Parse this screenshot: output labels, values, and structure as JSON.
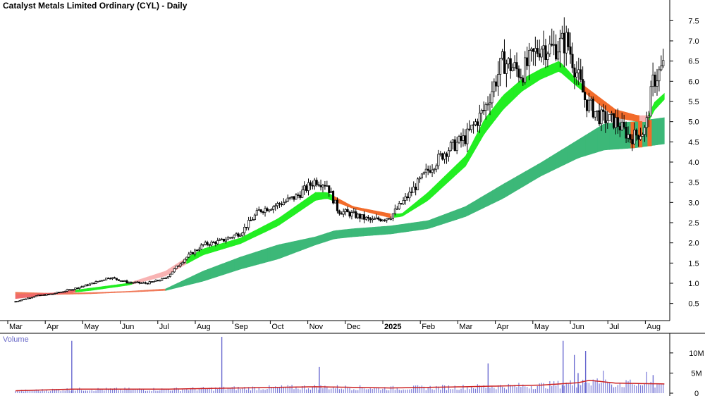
{
  "chart_data": [
    {
      "type": "candlestick",
      "title": "Catalyst Metals Limited Ordinary (CYL) - Daily",
      "y_ticks": [
        "0.5",
        "1.0",
        "1.5",
        "2.0",
        "2.5",
        "3.0",
        "3.5",
        "4.0",
        "4.5",
        "5.0",
        "5.5",
        "6.0",
        "6.5",
        "7.0",
        "7.5"
      ],
      "ylim": [
        0.25,
        7.75
      ],
      "x_labels": [
        {
          "label": "Mar",
          "bold": false
        },
        {
          "label": "Apr",
          "bold": false
        },
        {
          "label": "May",
          "bold": false
        },
        {
          "label": "Jun",
          "bold": false
        },
        {
          "label": "Jul",
          "bold": false
        },
        {
          "label": "Aug",
          "bold": false
        },
        {
          "label": "Sep",
          "bold": false
        },
        {
          "label": "Oct",
          "bold": false
        },
        {
          "label": "Nov",
          "bold": false
        },
        {
          "label": "Dec",
          "bold": false
        },
        {
          "label": "2025",
          "bold": true
        },
        {
          "label": "Feb",
          "bold": false
        },
        {
          "label": "Mar",
          "bold": false
        },
        {
          "label": "Apr",
          "bold": false
        },
        {
          "label": "May",
          "bold": false
        },
        {
          "label": "Jun",
          "bold": false
        },
        {
          "label": "Jul",
          "bold": false
        },
        {
          "label": "Aug",
          "bold": false
        }
      ],
      "price_path": [
        [
          0,
          0.55
        ],
        [
          0.5,
          0.68
        ],
        [
          1,
          0.74
        ],
        [
          1.5,
          0.85
        ],
        [
          2,
          0.98
        ],
        [
          2.5,
          1.15
        ],
        [
          3,
          1.02
        ],
        [
          3.5,
          1.0
        ],
        [
          4,
          1.12
        ],
        [
          4.5,
          1.6
        ],
        [
          5,
          1.95
        ],
        [
          5.5,
          2.05
        ],
        [
          6,
          2.25
        ],
        [
          6.5,
          2.8
        ],
        [
          7,
          2.95
        ],
        [
          7.5,
          3.15
        ],
        [
          8,
          3.55
        ],
        [
          8.3,
          3.45
        ],
        [
          8.6,
          2.8
        ],
        [
          9,
          2.7
        ],
        [
          9.5,
          2.55
        ],
        [
          10,
          2.65
        ],
        [
          10.5,
          3.2
        ],
        [
          11,
          3.8
        ],
        [
          11.5,
          4.3
        ],
        [
          12,
          4.6
        ],
        [
          12.5,
          5.3
        ],
        [
          13,
          6.5
        ],
        [
          13.5,
          6.2
        ],
        [
          14,
          6.9
        ],
        [
          14.3,
          6.8
        ],
        [
          14.7,
          7.0
        ],
        [
          15.2,
          5.5
        ],
        [
          15.6,
          5.1
        ],
        [
          16,
          5.0
        ],
        [
          16.4,
          4.6
        ],
        [
          16.8,
          4.8
        ],
        [
          17,
          6.0
        ],
        [
          17.3,
          6.4
        ]
      ],
      "short_ema_ribbon": [
        [
          0,
          0.62,
          0.72
        ],
        [
          1,
          0.72,
          0.76
        ],
        [
          2,
          0.82,
          0.88
        ],
        [
          3,
          0.95,
          1.0
        ],
        [
          4,
          1.18,
          1.3
        ],
        [
          4.5,
          1.45,
          1.6
        ],
        [
          5,
          1.7,
          1.85
        ],
        [
          6,
          1.98,
          2.12
        ],
        [
          7,
          2.42,
          2.6
        ],
        [
          8,
          3.05,
          3.25
        ],
        [
          8.3,
          3.1,
          3.25
        ],
        [
          9,
          2.85,
          2.9
        ],
        [
          10,
          2.62,
          2.72
        ],
        [
          10.3,
          2.65,
          2.72
        ],
        [
          11,
          3.05,
          3.25
        ],
        [
          12,
          3.9,
          4.15
        ],
        [
          12.5,
          4.7,
          5.05
        ],
        [
          13,
          5.3,
          5.65
        ],
        [
          13.5,
          5.75,
          6.05
        ],
        [
          14,
          6.05,
          6.3
        ],
        [
          14.5,
          6.25,
          6.5
        ],
        [
          15,
          5.85,
          6.0
        ],
        [
          16,
          5.1,
          5.3
        ],
        [
          16.6,
          5.0,
          5.15
        ],
        [
          16.9,
          5.0,
          5.15
        ],
        [
          17,
          5.25,
          5.45
        ],
        [
          17.3,
          5.55,
          5.7
        ]
      ],
      "long_ema_ribbon": [
        [
          0,
          0.72,
          0.78
        ],
        [
          1,
          0.72,
          0.75
        ],
        [
          2,
          0.74,
          0.77
        ],
        [
          3,
          0.78,
          0.8
        ],
        [
          4,
          0.82,
          0.86
        ],
        [
          5,
          1.05,
          1.3
        ],
        [
          6,
          1.35,
          1.65
        ],
        [
          7,
          1.6,
          1.95
        ],
        [
          8,
          1.95,
          2.15
        ],
        [
          8.5,
          2.1,
          2.3
        ],
        [
          9,
          2.15,
          2.35
        ],
        [
          10,
          2.22,
          2.42
        ],
        [
          11,
          2.35,
          2.55
        ],
        [
          12,
          2.65,
          2.9
        ],
        [
          13,
          3.1,
          3.45
        ],
        [
          14,
          3.65,
          3.98
        ],
        [
          15,
          4.1,
          4.55
        ],
        [
          15.7,
          4.3,
          4.95
        ],
        [
          16.5,
          4.35,
          5.0
        ],
        [
          17.3,
          4.45,
          5.1
        ]
      ]
    },
    {
      "type": "bar",
      "title": "Volume",
      "y_ticks": [
        "0",
        "5M",
        "10M"
      ],
      "ylim": [
        0,
        14
      ],
      "spikes": [
        [
          1.5,
          13
        ],
        [
          5.5,
          14
        ],
        [
          8.1,
          6.5
        ],
        [
          12.6,
          7.4
        ],
        [
          14.6,
          13
        ],
        [
          14.9,
          9.5
        ],
        [
          15.0,
          5
        ],
        [
          15.2,
          10.5
        ],
        [
          17.0,
          4.5
        ]
      ],
      "avg_line": [
        [
          0,
          0.6
        ],
        [
          1.5,
          1.0
        ],
        [
          4,
          1.0
        ],
        [
          6,
          1.3
        ],
        [
          8,
          1.6
        ],
        [
          10,
          1.3
        ],
        [
          12,
          1.6
        ],
        [
          14,
          2.0
        ],
        [
          15,
          2.6
        ],
        [
          15.3,
          3.2
        ],
        [
          16,
          2.5
        ],
        [
          17.3,
          2.3
        ]
      ]
    }
  ]
}
